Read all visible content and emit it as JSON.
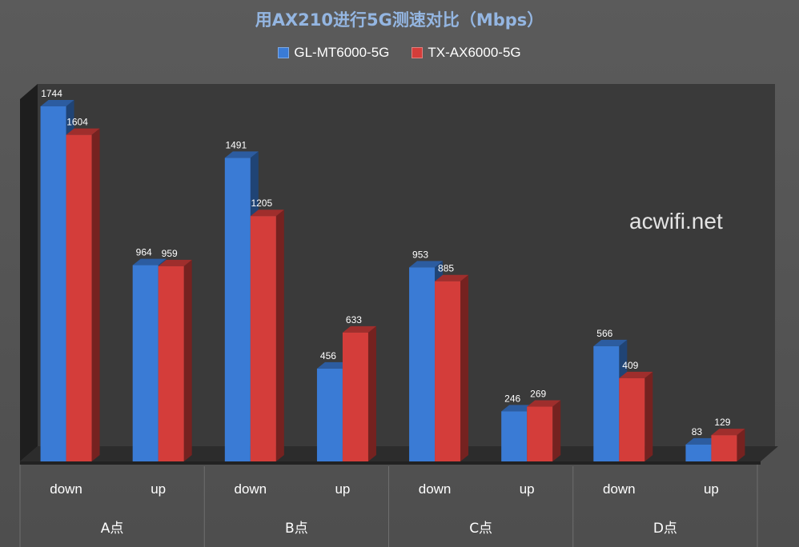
{
  "chart_data": {
    "type": "bar",
    "title": "用AX210进行5G测速对比（Mbps）",
    "xlabel": "",
    "ylabel": "",
    "ylim": [
      0,
      2000
    ],
    "grid": false,
    "legend_position": "top",
    "groups": [
      {
        "label": "A点",
        "categories": [
          "down",
          "up"
        ]
      },
      {
        "label": "B点",
        "categories": [
          "down",
          "up"
        ]
      },
      {
        "label": "C点",
        "categories": [
          "down",
          "up"
        ]
      },
      {
        "label": "D点",
        "categories": [
          "down",
          "up"
        ]
      }
    ],
    "categories": [
      "down",
      "up",
      "down",
      "up",
      "down",
      "up",
      "down",
      "up"
    ],
    "series": [
      {
        "name": "GL-MT6000-5G",
        "color": "#3a7bd5",
        "values": [
          1744,
          964,
          1491,
          456,
          953,
          246,
          566,
          83
        ]
      },
      {
        "name": "TX-AX6000-5G",
        "color": "#d43d3a",
        "values": [
          1604,
          959,
          1205,
          633,
          885,
          269,
          409,
          129
        ]
      }
    ]
  },
  "watermark": "acwifi.net"
}
